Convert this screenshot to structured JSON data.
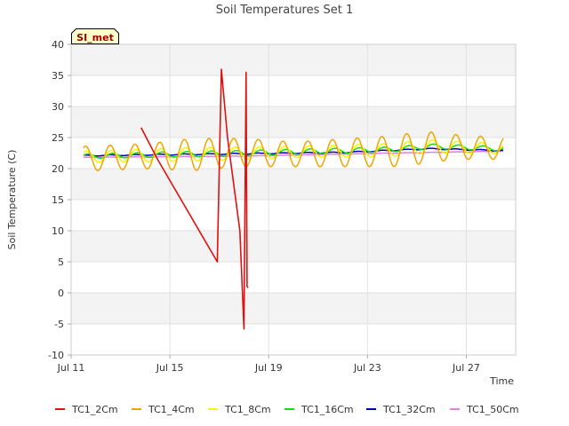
{
  "chart_data": {
    "type": "line",
    "title": "Soil Temperatures Set 1",
    "xlabel": "Time",
    "ylabel": "Soil Temperature (C)",
    "badge": "SI_met",
    "ylim": [
      -10,
      40
    ],
    "yticks": [
      -10,
      -5,
      0,
      5,
      10,
      15,
      20,
      25,
      30,
      35,
      40
    ],
    "xlim": [
      "2023-07-11",
      "2023-07-29"
    ],
    "xticks": [
      {
        "date": "2023-07-11",
        "label": "Jul 11"
      },
      {
        "date": "2023-07-15",
        "label": "Jul 15"
      },
      {
        "date": "2023-07-19",
        "label": "Jul 19"
      },
      {
        "date": "2023-07-23",
        "label": "Jul 23"
      },
      {
        "date": "2023-07-27",
        "label": "Jul 27"
      }
    ],
    "grid": "horizontal bands",
    "legend_position": "bottom",
    "series": [
      {
        "name": "TC1_2Cm",
        "color": "#dd1111",
        "points": [
          [
            "2023-07-13 20:00",
            26.6
          ],
          [
            "2023-07-14 12:00",
            21.5
          ],
          [
            "2023-07-16 22:00",
            5.0
          ],
          [
            "2023-07-17 02:00",
            36.0
          ],
          [
            "2023-07-17 08:00",
            25.0
          ],
          [
            "2023-07-17 20:00",
            10.0
          ],
          [
            "2023-07-18 00:00",
            -5.8
          ],
          [
            "2023-07-18 02:00",
            35.5
          ],
          [
            "2023-07-18 03:00",
            1.0
          ],
          [
            "2023-07-18 04:00",
            0.8
          ]
        ]
      },
      {
        "name": "TC1_4Cm",
        "color": "#f0a500",
        "baseline": [
          [
            "2023-07-11 12:00",
            21.6
          ],
          [
            "2023-07-18 00:00",
            22.6
          ],
          [
            "2023-07-20 00:00",
            22.3
          ],
          [
            "2023-07-24 00:00",
            22.8
          ],
          [
            "2023-07-25 12:00",
            23.5
          ],
          [
            "2023-07-28 12:00",
            23.3
          ]
        ],
        "amplitude": [
          [
            "2023-07-11 12:00",
            2.0
          ],
          [
            "2023-07-14 00:00",
            2.0
          ],
          [
            "2023-07-16 00:00",
            2.6
          ],
          [
            "2023-07-17 00:00",
            2.4
          ],
          [
            "2023-07-20 00:00",
            2.0
          ],
          [
            "2023-07-25 00:00",
            2.6
          ],
          [
            "2023-07-27 00:00",
            1.9
          ],
          [
            "2023-07-28 12:00",
            1.8
          ]
        ]
      },
      {
        "name": "TC1_8Cm",
        "color": "#f5f500",
        "baseline": [
          [
            "2023-07-11 12:00",
            21.9
          ],
          [
            "2023-07-18 00:00",
            22.5
          ],
          [
            "2023-07-24 00:00",
            23.0
          ],
          [
            "2023-07-25 12:00",
            23.6
          ],
          [
            "2023-07-28 12:00",
            23.2
          ]
        ],
        "amplitude": [
          [
            "2023-07-11 12:00",
            0.9
          ],
          [
            "2023-07-16 00:00",
            1.1
          ],
          [
            "2023-07-20 00:00",
            0.9
          ],
          [
            "2023-07-25 00:00",
            1.1
          ],
          [
            "2023-07-28 12:00",
            0.8
          ]
        ]
      },
      {
        "name": "TC1_16Cm",
        "color": "#11dd11",
        "baseline": [
          [
            "2023-07-11 12:00",
            22.0
          ],
          [
            "2023-07-18 00:00",
            22.5
          ],
          [
            "2023-07-24 00:00",
            23.1
          ],
          [
            "2023-07-25 12:00",
            23.6
          ],
          [
            "2023-07-28 12:00",
            23.2
          ]
        ],
        "amplitude": [
          [
            "2023-07-11 12:00",
            0.35
          ],
          [
            "2023-07-16 00:00",
            0.45
          ],
          [
            "2023-07-28 12:00",
            0.35
          ]
        ]
      },
      {
        "name": "TC1_32Cm",
        "color": "#0000bb",
        "baseline": [
          [
            "2023-07-11 12:00",
            22.1
          ],
          [
            "2023-07-18 00:00",
            22.4
          ],
          [
            "2023-07-22 00:00",
            22.6
          ],
          [
            "2023-07-25 12:00",
            23.2
          ],
          [
            "2023-07-28 12:00",
            22.9
          ]
        ],
        "amplitude": [
          [
            "2023-07-11 12:00",
            0.08
          ],
          [
            "2023-07-28 12:00",
            0.08
          ]
        ]
      },
      {
        "name": "TC1_50Cm",
        "color": "#e080e8",
        "baseline": [
          [
            "2023-07-11 12:00",
            21.8
          ],
          [
            "2023-07-18 00:00",
            22.0
          ],
          [
            "2023-07-24 00:00",
            22.5
          ],
          [
            "2023-07-28 12:00",
            22.8
          ]
        ],
        "amplitude": [
          [
            "2023-07-11 12:00",
            0.03
          ],
          [
            "2023-07-28 12:00",
            0.03
          ]
        ]
      }
    ]
  }
}
